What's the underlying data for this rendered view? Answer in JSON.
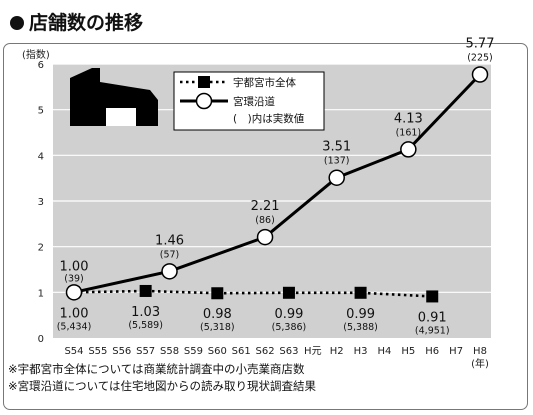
{
  "title": "店舗数の推移",
  "notes": [
    "※宇都宮市全体については商業統計調査中の小売業商店数",
    "※宮環沿道については住宅地図からの読み取り現状調査結果"
  ],
  "colors": {
    "background": "#ffffff",
    "plot_background": "#d0d0d0",
    "line": "#000000"
  },
  "chart_data": {
    "type": "line",
    "title": "店舗数の推移",
    "ylabel": "(指数)",
    "xlabel": "(年)",
    "ylim": [
      0,
      6
    ],
    "yticks": [
      "0",
      "1",
      "2",
      "3",
      "4",
      "5",
      "6"
    ],
    "grid": "horizontal",
    "legend_position": "top-left",
    "categories": [
      "S54",
      "S55",
      "S56",
      "S57",
      "S58",
      "S59",
      "S60",
      "S61",
      "S62",
      "S63",
      "H元",
      "H2",
      "H3",
      "H4",
      "H5",
      "H6",
      "H7",
      "H8"
    ],
    "series": [
      {
        "name": "宇都宮市全体",
        "marker": "square",
        "line_style": "dotted",
        "points": [
          {
            "x": "S54",
            "y": 1.0,
            "label": "1.00",
            "count": "(5,434)"
          },
          {
            "x": "S57",
            "y": 1.03,
            "label": "1.03",
            "count": "(5,589)"
          },
          {
            "x": "S60",
            "y": 0.98,
            "label": "0.98",
            "count": "(5,318)"
          },
          {
            "x": "S63",
            "y": 0.99,
            "label": "0.99",
            "count": "(5,386)"
          },
          {
            "x": "H3",
            "y": 0.99,
            "label": "0.99",
            "count": "(5,388)"
          },
          {
            "x": "H6",
            "y": 0.91,
            "label": "0.91",
            "count": "(4,951)"
          }
        ]
      },
      {
        "name": "宮環沿道",
        "marker": "circle",
        "line_style": "solid",
        "points": [
          {
            "x": "S54",
            "y": 1.0,
            "label": "1.00",
            "count": "(39)"
          },
          {
            "x": "S58",
            "y": 1.46,
            "label": "1.46",
            "count": "(57)"
          },
          {
            "x": "S62",
            "y": 2.21,
            "label": "2.21",
            "count": "(86)"
          },
          {
            "x": "H2",
            "y": 3.51,
            "label": "3.51",
            "count": "(137)"
          },
          {
            "x": "H5",
            "y": 4.13,
            "label": "4.13",
            "count": "(161)"
          },
          {
            "x": "H8",
            "y": 5.77,
            "label": "5.77",
            "count": "(225)"
          }
        ]
      }
    ],
    "legend_note": "(　)内は実数値"
  }
}
